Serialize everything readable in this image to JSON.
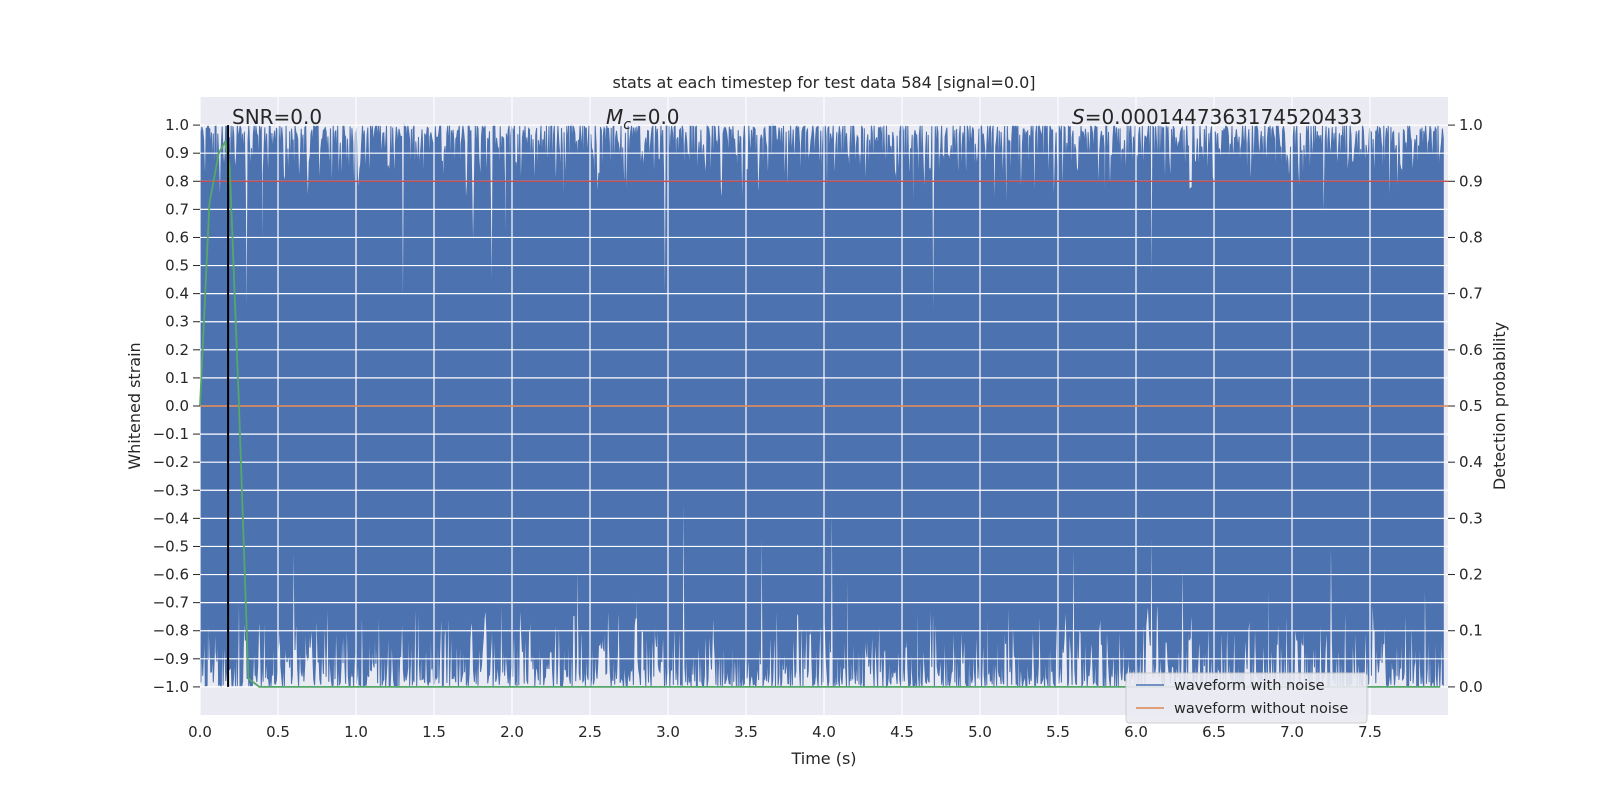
{
  "chart_data": {
    "type": "line",
    "title": "stats at each timestep for test data 584 [signal=0.0]",
    "xlabel": "Time (s)",
    "ylabel_left": "Whitened strain",
    "ylabel_right": "Detection probability",
    "xlim": [
      0.0,
      8.0
    ],
    "ylim_left": [
      -1.1,
      1.1
    ],
    "ylim_right": [
      -0.05,
      1.05
    ],
    "xticks": [
      "0.0",
      "0.5",
      "1.0",
      "1.5",
      "2.0",
      "2.5",
      "3.0",
      "3.5",
      "4.0",
      "4.5",
      "5.0",
      "5.5",
      "6.0",
      "6.5",
      "7.0",
      "7.5"
    ],
    "yticks_left": [
      "1.0",
      "0.9",
      "0.8",
      "0.7",
      "0.6",
      "0.5",
      "0.4",
      "0.3",
      "0.2",
      "0.1",
      "0.0",
      "−0.1",
      "−0.2",
      "−0.3",
      "−0.4",
      "−0.5",
      "−0.6",
      "−0.7",
      "−0.8",
      "−0.9",
      "−1.0"
    ],
    "yticks_right": [
      "1.0",
      "0.9",
      "0.8",
      "0.7",
      "0.6",
      "0.5",
      "0.4",
      "0.3",
      "0.2",
      "0.1",
      "0.0"
    ],
    "grid": true,
    "legend_position": "bottom-right",
    "annotations": {
      "snr": "SNR=0.0",
      "mc_symbol": "M",
      "mc_sub": "c",
      "mc_value": "=0.0",
      "s_symbol": "S",
      "s_value": "=0.0001447363174520433"
    },
    "series": [
      {
        "name": "waveform with noise",
        "axis": "left",
        "color": "#4c72b0",
        "description_of_envelope": "dense noise filling roughly -1.0 to 1.0 with dips",
        "upper_dips": [
          [
            0.13,
            0.75
          ],
          [
            0.4,
            0.2
          ],
          [
            0.3,
            0.33
          ],
          [
            1.3,
            0.35
          ],
          [
            1.75,
            0.58
          ],
          [
            1.87,
            0.43
          ],
          [
            1.96,
            0.31
          ],
          [
            2.33,
            0.52
          ],
          [
            2.98,
            0.37
          ],
          [
            4.02,
            0.53
          ],
          [
            4.7,
            0.31
          ],
          [
            4.57,
            0.45
          ],
          [
            5.17,
            0.53
          ],
          [
            5.8,
            0.52
          ],
          [
            6.1,
            0.44
          ],
          [
            6.5,
            0.23
          ],
          [
            7.0,
            0.48
          ],
          [
            7.2,
            0.55
          ]
        ],
        "lower_peaks": [
          [
            0.05,
            -0.58
          ],
          [
            0.25,
            -0.48
          ],
          [
            0.6,
            -0.5
          ],
          [
            1.4,
            -0.55
          ],
          [
            1.93,
            -0.5
          ],
          [
            2.42,
            -0.33
          ],
          [
            2.8,
            -0.5
          ],
          [
            3.1,
            -0.31
          ],
          [
            3.6,
            -0.44
          ],
          [
            4.05,
            -0.35
          ],
          [
            4.15,
            -0.22
          ],
          [
            4.6,
            -0.42
          ],
          [
            5.05,
            -0.48
          ],
          [
            5.6,
            -0.48
          ],
          [
            6.1,
            -0.44
          ],
          [
            6.3,
            -0.56
          ],
          [
            6.85,
            -0.3
          ],
          [
            7.25,
            -0.48
          ],
          [
            7.85,
            -0.52
          ]
        ]
      },
      {
        "name": "waveform without noise",
        "axis": "left",
        "color": "#dd8452",
        "x": [
          0.0,
          8.0
        ],
        "y": [
          0.0,
          0.0
        ]
      },
      {
        "name": "detection probability",
        "axis": "right",
        "color": "#55a868",
        "x": [
          0.0,
          0.06,
          0.12,
          0.16,
          0.19,
          0.25,
          0.31,
          0.38,
          0.5,
          7.95
        ],
        "y": [
          0.5,
          0.86,
          0.95,
          0.97,
          0.93,
          0.5,
          0.015,
          0.0,
          0.0,
          0.0
        ]
      }
    ],
    "threshold_line": {
      "axis": "right",
      "y": 0.9,
      "color": "#c44e52"
    },
    "marker_line": {
      "x": 0.18,
      "color": "#000000"
    }
  }
}
